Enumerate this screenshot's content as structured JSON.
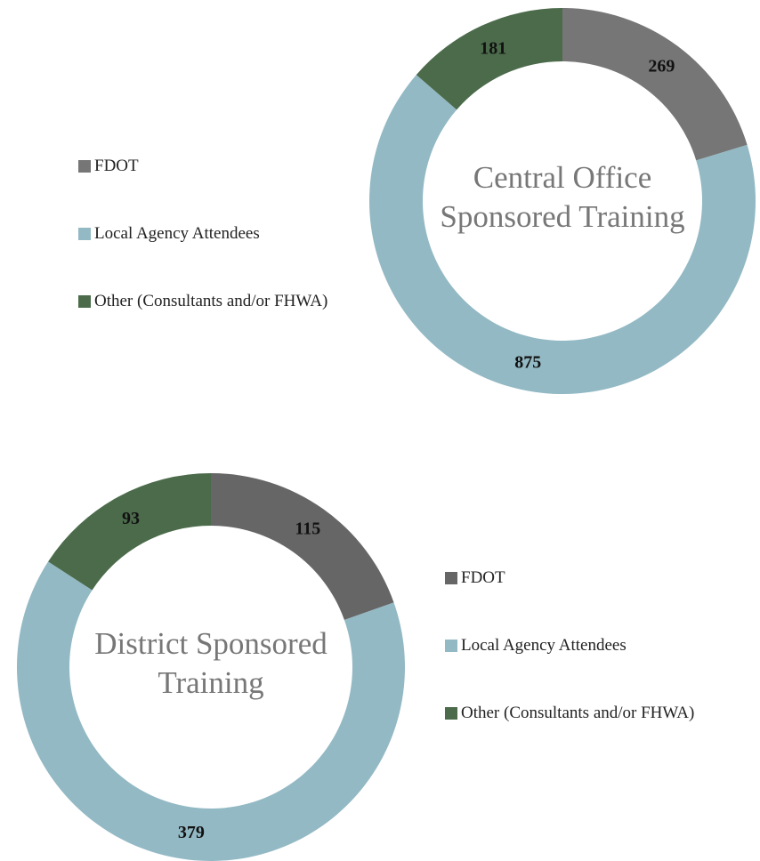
{
  "chart_data": [
    {
      "type": "donut",
      "title": "Central Office Sponsored Training",
      "categories": [
        "FDOT",
        "Local Agency Attendees",
        "Other (Consultants and/or FHWA)"
      ],
      "values": [
        269,
        875,
        181
      ],
      "colors": [
        "#767676",
        "#93b9c4",
        "#4b6b4b"
      ],
      "legend": "left"
    },
    {
      "type": "donut",
      "title": "District Sponsored Training",
      "categories": [
        "FDOT",
        "Local Agency Attendees",
        "Other (Consultants and/or FHWA)"
      ],
      "values": [
        115,
        379,
        93
      ],
      "colors": [
        "#666666",
        "#93b9c4",
        "#4b6b4b"
      ],
      "legend": "right"
    }
  ]
}
